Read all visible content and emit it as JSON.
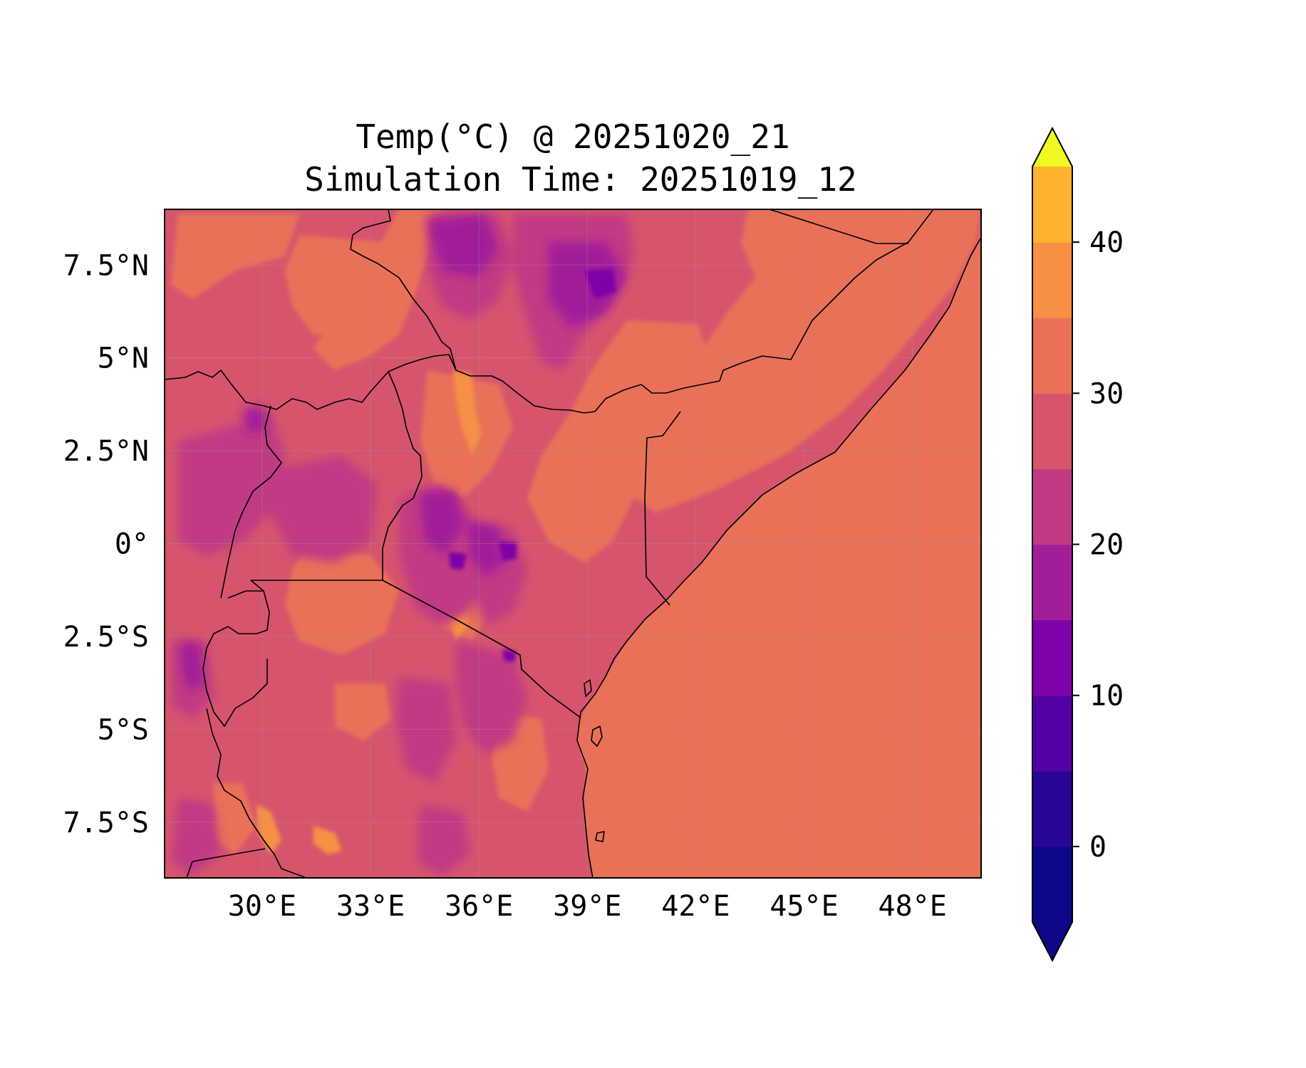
{
  "title": {
    "line1": "Temp(°C) @ 20251020_21",
    "line2": "Simulation Time: 20251019_12"
  },
  "map": {
    "projection": "PlateCarree",
    "lon_range": [
      27.3,
      49.9
    ],
    "lat_range": [
      -9.0,
      9.0
    ],
    "x_ticks": [
      {
        "value": 30,
        "label": "30°E"
      },
      {
        "value": 33,
        "label": "33°E"
      },
      {
        "value": 36,
        "label": "36°E"
      },
      {
        "value": 39,
        "label": "39°E"
      },
      {
        "value": 42,
        "label": "42°E"
      },
      {
        "value": 45,
        "label": "45°E"
      },
      {
        "value": 48,
        "label": "48°E"
      }
    ],
    "y_ticks": [
      {
        "value": 7.5,
        "label": "7.5°N"
      },
      {
        "value": 5,
        "label": "5°N"
      },
      {
        "value": 2.5,
        "label": "2.5°N"
      },
      {
        "value": 0,
        "label": "0°"
      },
      {
        "value": -2.5,
        "label": "2.5°S"
      },
      {
        "value": -5,
        "label": "5°S"
      },
      {
        "value": -7.5,
        "label": "7.5°S"
      }
    ],
    "gridlines": true,
    "ocean_value_celsius": 27.5
  },
  "colorbar": {
    "colormap": "plasma",
    "extend": "both",
    "levels": [
      -5,
      0,
      5,
      10,
      15,
      20,
      25,
      30,
      35,
      40,
      45
    ],
    "colors": [
      "#0d0887",
      "#2a0593",
      "#5402a3",
      "#7e03a8",
      "#a21d9a",
      "#c03a83",
      "#d6556d",
      "#e97158",
      "#f79044",
      "#feb32e",
      "#f6e227"
    ],
    "under_color": "#0d0887",
    "over_color": "#f0f921",
    "ticks": [
      {
        "value": 0,
        "label": "0"
      },
      {
        "value": 10,
        "label": "10"
      },
      {
        "value": 20,
        "label": "20"
      },
      {
        "value": 30,
        "label": "30"
      },
      {
        "value": 40,
        "label": "40"
      }
    ]
  }
}
